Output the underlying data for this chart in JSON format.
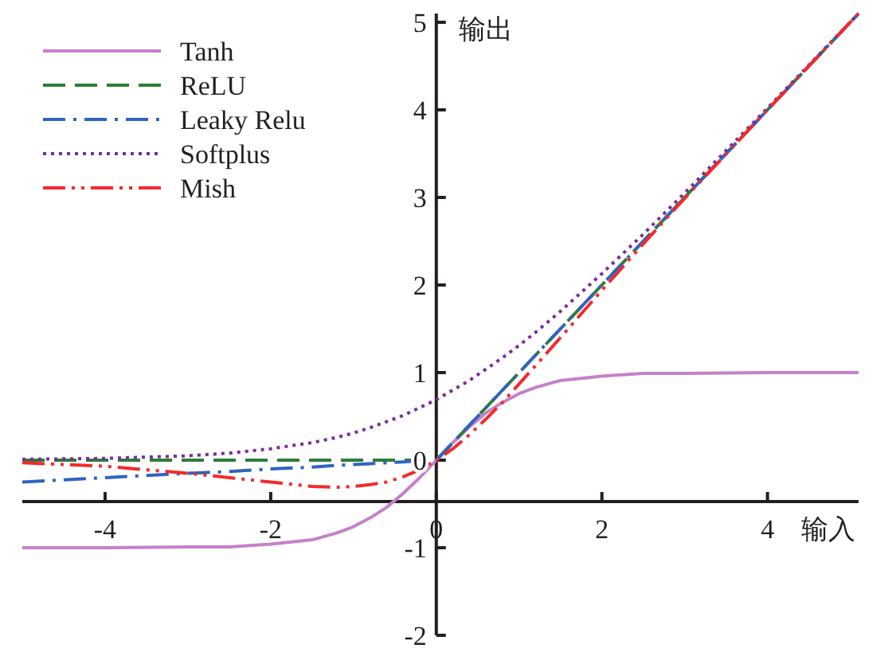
{
  "chart_data": {
    "type": "line",
    "xlabel": "输入",
    "ylabel": "输出",
    "x": [
      -5,
      -4,
      -3,
      -2.5,
      -2,
      -1.5,
      -1.2,
      -1,
      -0.8,
      -0.6,
      -0.4,
      -0.2,
      0,
      0.2,
      0.4,
      0.6,
      0.8,
      1,
      1.2,
      1.5,
      2,
      2.5,
      3,
      4,
      5.1
    ],
    "xlim": [
      -5,
      5.1
    ],
    "xticks": [
      -4,
      -2,
      0,
      2,
      4
    ],
    "ylim": [
      -2,
      5.1
    ],
    "yticks": [
      -2,
      -1,
      0,
      1,
      2,
      3,
      4,
      5
    ],
    "legend": "top left",
    "grid": false,
    "marker": "none",
    "series": [
      {
        "name": "Tanh",
        "color": "#c481c9",
        "line_style": "solid",
        "values": [
          -1.0,
          -1.0,
          -0.99,
          -0.99,
          -0.96,
          -0.91,
          -0.83,
          -0.76,
          -0.66,
          -0.54,
          -0.38,
          -0.2,
          0,
          0.2,
          0.38,
          0.54,
          0.66,
          0.76,
          0.83,
          0.91,
          0.96,
          0.99,
          0.99,
          1.0,
          1.0
        ]
      },
      {
        "name": "ReLU",
        "color": "#2e7d3a",
        "line_style": "dashed",
        "values": [
          0,
          0,
          0,
          0,
          0,
          0,
          0,
          0,
          0,
          0,
          0,
          0,
          0,
          0.2,
          0.4,
          0.6,
          0.8,
          1,
          1.2,
          1.5,
          2,
          2.5,
          3,
          4,
          5.1
        ]
      },
      {
        "name": "Leaky Relu",
        "color": "#2f64c0",
        "line_style": "dashdot",
        "values": [
          -0.25,
          -0.2,
          -0.15,
          -0.13,
          -0.1,
          -0.08,
          -0.06,
          -0.05,
          -0.04,
          -0.03,
          -0.02,
          -0.01,
          0,
          0.2,
          0.4,
          0.6,
          0.8,
          1,
          1.2,
          1.5,
          2,
          2.5,
          3,
          4,
          5.1
        ]
      },
      {
        "name": "Softplus",
        "color": "#7a2e99",
        "line_style": "dotted",
        "values": [
          0.01,
          0.02,
          0.05,
          0.08,
          0.13,
          0.2,
          0.26,
          0.31,
          0.37,
          0.44,
          0.51,
          0.6,
          0.69,
          0.8,
          0.91,
          1.04,
          1.17,
          1.31,
          1.46,
          1.7,
          2.13,
          2.58,
          3.05,
          4.02,
          5.1
        ]
      },
      {
        "name": "Mish",
        "color": "#f42a2a",
        "line_style": "dashdotdot",
        "values": [
          -0.03,
          -0.07,
          -0.15,
          -0.2,
          -0.25,
          -0.3,
          -0.31,
          -0.3,
          -0.28,
          -0.25,
          -0.19,
          -0.11,
          0,
          0.13,
          0.29,
          0.47,
          0.66,
          0.87,
          1.08,
          1.4,
          1.94,
          2.47,
          2.99,
          4.0,
          5.1
        ]
      }
    ]
  }
}
